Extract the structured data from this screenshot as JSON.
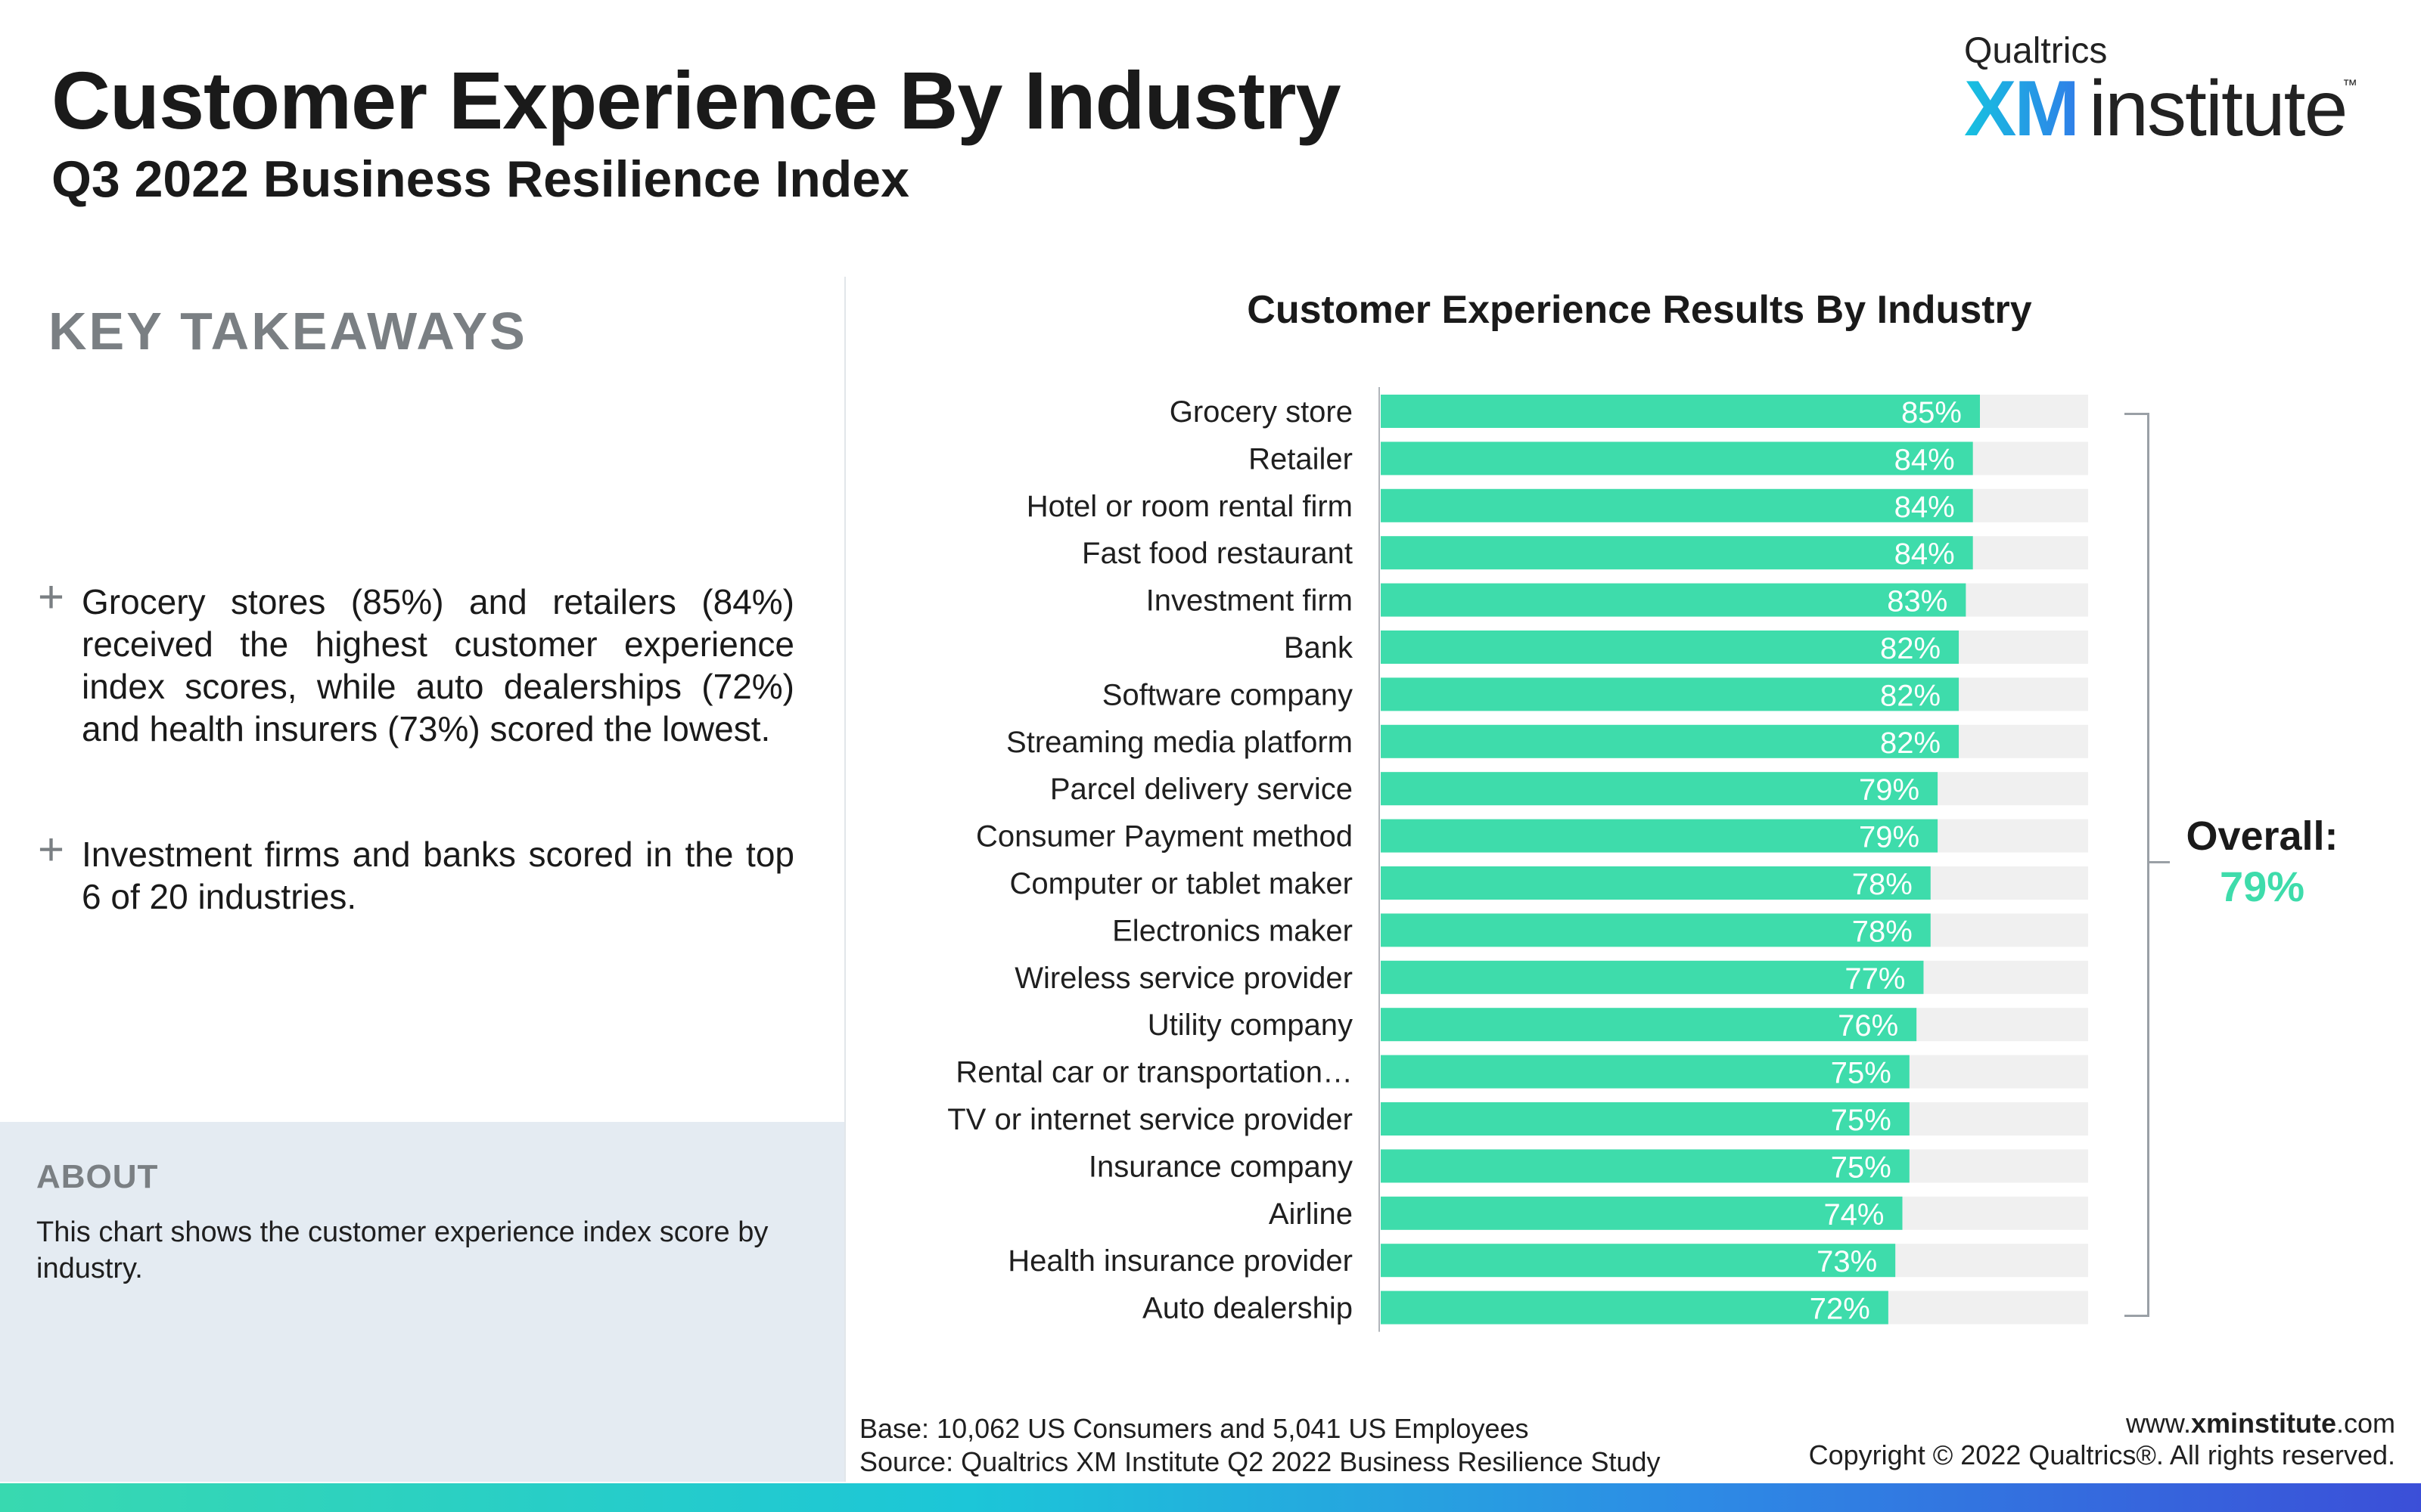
{
  "header": {
    "title": "Customer Experience By Industry",
    "subtitle": "Q3 2022 Business Resilience Index"
  },
  "logo": {
    "top": "Qualtrics",
    "xm": "XM",
    "institute": "institute",
    "tm": "™"
  },
  "takeaways": {
    "heading": "KEY TAKEAWAYS",
    "items": [
      "Grocery stores (85%) and retailers (84%) received the highest customer experience index scores, while auto dealerships (72%) and health insurers (73%) scored the lowest.",
      "Investment firms and banks scored in the top 6 of 20 industries."
    ]
  },
  "about": {
    "heading": "ABOUT",
    "text": "This chart shows the customer experience index score by industry."
  },
  "overall": {
    "label": "Overall:",
    "value": "79%"
  },
  "footer": {
    "base": "Base: 10,062 US Consumers and 5,041 US Employees",
    "source": "Source: Qualtrics XM Institute Q2 2022 Business Resilience Study",
    "site_prefix": "www.",
    "site_bold": "xminstitute",
    "site_suffix": ".com",
    "copyright": "Copyright © 2022 Qualtrics®. All rights reserved."
  },
  "colors": {
    "bar": "#3edcab",
    "track": "#f0f0f0",
    "accent": "#3edcab"
  },
  "chart_data": {
    "type": "bar",
    "orientation": "horizontal",
    "title": "Customer Experience Results By Industry",
    "categories": [
      "Grocery store",
      "Retailer",
      "Hotel or room rental firm",
      "Fast food restaurant",
      "Investment firm",
      "Bank",
      "Software company",
      "Streaming media platform",
      "Parcel delivery service",
      "Consumer Payment method",
      "Computer or tablet maker",
      "Electronics maker",
      "Wireless service provider",
      "Utility company",
      "Rental car or transportation…",
      "TV or internet service provider",
      "Insurance company",
      "Airline",
      "Health insurance provider",
      "Auto dealership"
    ],
    "values": [
      85,
      84,
      84,
      84,
      83,
      82,
      82,
      82,
      79,
      79,
      78,
      78,
      77,
      76,
      75,
      75,
      75,
      74,
      73,
      72
    ],
    "labels": [
      "85%",
      "84%",
      "84%",
      "84%",
      "83%",
      "82%",
      "82%",
      "82%",
      "79%",
      "79%",
      "78%",
      "78%",
      "77%",
      "76%",
      "75%",
      "75%",
      "75%",
      "74%",
      "73%",
      "72%"
    ],
    "xlim": [
      0,
      100
    ],
    "grid": false,
    "legend": "none"
  }
}
